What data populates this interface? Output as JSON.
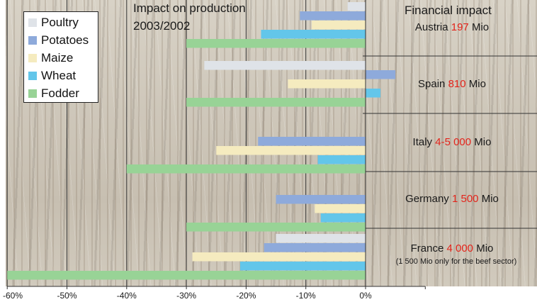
{
  "chart_data": {
    "type": "bar",
    "orientation": "horizontal",
    "title": "Impact on production 2003/2002",
    "title_lines": [
      "Impact on production",
      "2003/2002"
    ],
    "financial_title": "Financial impact",
    "xlim": [
      -60,
      10
    ],
    "x_ticks": [
      -60,
      -50,
      -40,
      -30,
      -20,
      -10,
      0
    ],
    "x_tick_labels": [
      "-60%",
      "-50%",
      "-40%",
      "-30%",
      "-20%",
      "-10%",
      "0%"
    ],
    "grid": true,
    "legend_position": "top-left",
    "categories": [
      "Austria",
      "Spain",
      "Italy",
      "Germany",
      "France"
    ],
    "series": [
      {
        "name": "Poultry",
        "color": "#dfe3e8",
        "values": [
          -3,
          -27,
          null,
          null,
          -15
        ]
      },
      {
        "name": "Potatoes",
        "color": "#8eaadb",
        "values": [
          -11,
          5,
          -18,
          -15,
          -17
        ]
      },
      {
        "name": "Maize",
        "color": "#f5ebbf",
        "values": [
          -9,
          -13,
          -25,
          -8.5,
          -29
        ]
      },
      {
        "name": "Wheat",
        "color": "#63c6ea",
        "values": [
          -17.5,
          2.5,
          -8,
          -7.5,
          -21
        ]
      },
      {
        "name": "Fodder",
        "color": "#98d396",
        "values": [
          -30,
          -30,
          -40,
          -30,
          -60
        ]
      }
    ],
    "financial_impact": [
      {
        "country": "Austria",
        "amount": "197",
        "unit": "Mio"
      },
      {
        "country": "Spain",
        "amount": "810",
        "unit": "Mio"
      },
      {
        "country": "Italy",
        "amount": "4-5 000",
        "unit": "Mio"
      },
      {
        "country": "Germany",
        "amount": "1 500",
        "unit": "Mio"
      },
      {
        "country": "France",
        "amount": "4 000",
        "unit": "Mio",
        "note": "(1 500 Mio only for the beef sector)"
      }
    ]
  },
  "colors": {
    "gridline": "#333333",
    "amount_highlight": "#e3241b"
  }
}
